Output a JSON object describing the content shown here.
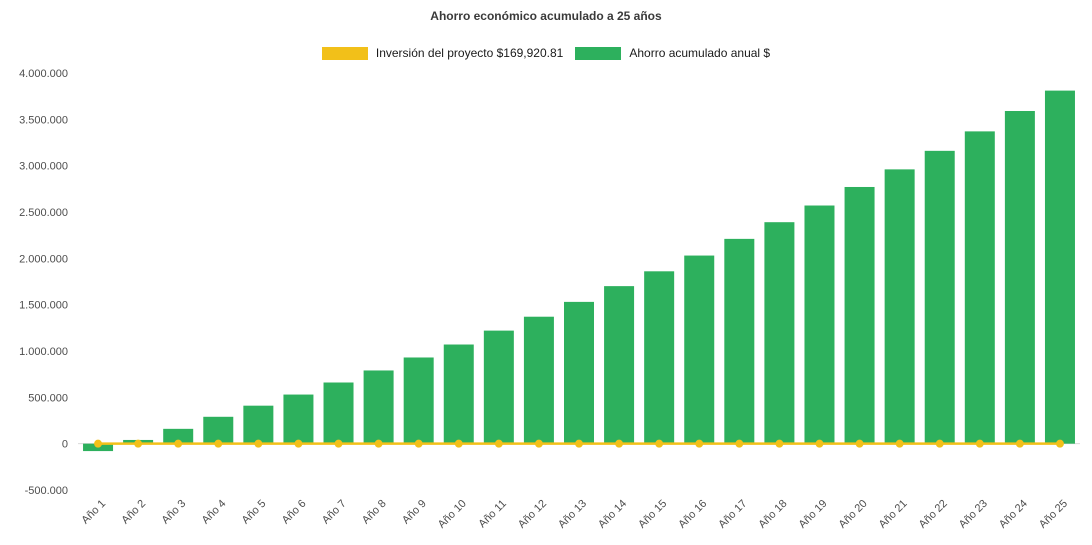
{
  "legend": [
    {
      "label": "Inversión del proyecto $169,920.81",
      "color": "#F2C019"
    },
    {
      "label": "Ahorro acumulado anual $",
      "color": "#2DB05D"
    }
  ],
  "chart_data": {
    "type": "bar",
    "title": "Ahorro económico acumulado a 25 años",
    "categories": [
      "Año 1",
      "Año 2",
      "Año 3",
      "Año 4",
      "Año 5",
      "Año 6",
      "Año 7",
      "Año 8",
      "Año 9",
      "Año 10",
      "Año 11",
      "Año 12",
      "Año 13",
      "Año 14",
      "Año 15",
      "Año 16",
      "Año 17",
      "Año 18",
      "Año 19",
      "Año 20",
      "Año 21",
      "Año 22",
      "Año 23",
      "Año 24",
      "Año 25"
    ],
    "series": [
      {
        "name": "Ahorro acumulado anual $",
        "type": "bar",
        "color": "#2DB05D",
        "values": [
          -80000,
          40000,
          160000,
          290000,
          410000,
          530000,
          660000,
          790000,
          930000,
          1070000,
          1220000,
          1370000,
          1530000,
          1700000,
          1860000,
          2030000,
          2210000,
          2390000,
          2570000,
          2770000,
          2960000,
          3160000,
          3370000,
          3590000,
          3810000
        ]
      },
      {
        "name": "Inversión del proyecto $169,920.81",
        "type": "line",
        "color": "#F2C019",
        "constant_value": 0
      }
    ],
    "ylim": [
      -500000,
      4000000
    ],
    "y_ticks": [
      {
        "value": 4000000,
        "label": "4.000.000"
      },
      {
        "value": 3500000,
        "label": "3.500.000"
      },
      {
        "value": 3000000,
        "label": "3.000.000"
      },
      {
        "value": 2500000,
        "label": "2.500.000"
      },
      {
        "value": 2000000,
        "label": "2.000.000"
      },
      {
        "value": 1500000,
        "label": "1.500.000"
      },
      {
        "value": 1000000,
        "label": "1.000.000"
      },
      {
        "value": 500000,
        "label": "500.000"
      },
      {
        "value": 0,
        "label": "0"
      },
      {
        "value": -500000,
        "label": "-500.000"
      }
    ],
    "grid": false,
    "legend_position": "top",
    "xlabel": "",
    "ylabel": ""
  }
}
